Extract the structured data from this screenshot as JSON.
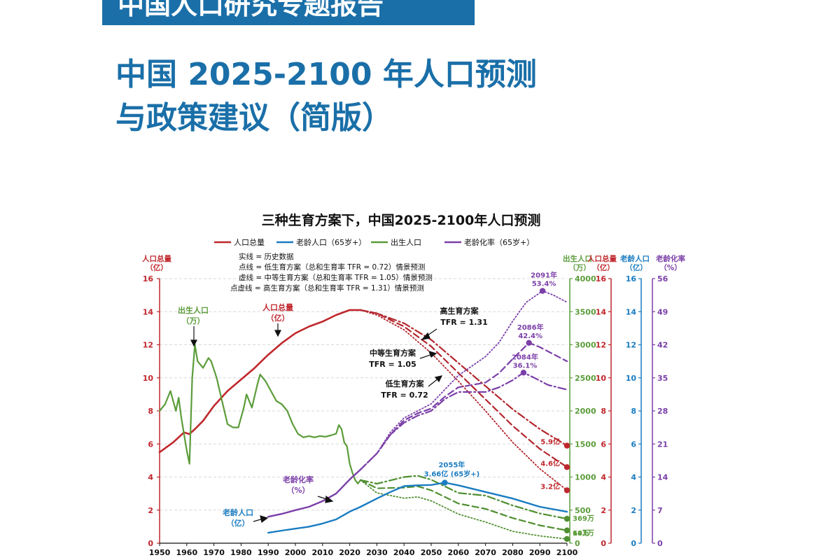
{
  "header": {
    "banner": "中国人口研究专题报告",
    "title_line1": "中国 2025-2100 年人口预测",
    "title_line2": "与政策建议（简版）"
  },
  "chart_data": {
    "type": "line",
    "title": "三种生育方案下，中国2025-2100年人口预测",
    "legend": [
      {
        "label": "人口总量",
        "color": "#c0272d"
      },
      {
        "label": "老龄人口（65岁+）",
        "color": "#1a7cc1"
      },
      {
        "label": "出生人口",
        "color": "#5b9c3a"
      },
      {
        "label": "老龄化率（65岁+）",
        "color": "#7b3fa8"
      }
    ],
    "line_style_notes": [
      "实线 = 历史数据",
      "点线 = 低生育方案（总和生育率 TFR = 0.72）情景预测",
      "虚线 = 中等生育方案（总和生育率 TFR = 1.05）情景预测",
      "点虚线 = 高生育方案（总和生育率 TFR = 1.31）情景预测"
    ],
    "axes": {
      "x": {
        "min": 1950,
        "max": 2100,
        "ticks": [
          "1950",
          "1960",
          "1970",
          "1980",
          "1990",
          "2000",
          "2010",
          "2020",
          "2030",
          "2040",
          "2050",
          "2060",
          "2070",
          "2080",
          "2090",
          "2100"
        ]
      },
      "left": {
        "title_line1": "人口总量",
        "title_line2": "（亿）",
        "min": 0,
        "max": 16,
        "ticks": [
          "0",
          "2",
          "4",
          "6",
          "8",
          "10",
          "12",
          "14",
          "16"
        ],
        "color": "#c0272d"
      },
      "right_births": {
        "title_line1": "出生人口",
        "title_line2": "（万）",
        "min": 0,
        "max": 4000,
        "ticks": [
          "0",
          "500",
          "1000",
          "1500",
          "2000",
          "2500",
          "3000",
          "3500",
          "4000"
        ],
        "color": "#5b9c3a"
      },
      "right_population": {
        "title_line1": "人口总量",
        "title_line2": "（亿）",
        "min": 0,
        "max": 16,
        "ticks": [
          "0",
          "2",
          "4",
          "6",
          "8",
          "10",
          "12",
          "14",
          "16"
        ],
        "color": "#c0272d"
      },
      "right_elderly": {
        "title_line1": "老龄人口",
        "title_line2": "（亿）",
        "min": 0,
        "max": 16,
        "ticks": [
          "0",
          "2",
          "4",
          "6",
          "8",
          "10",
          "12",
          "14",
          "16"
        ],
        "color": "#1a7cc1"
      },
      "right_aging": {
        "title_line1": "老龄化率",
        "title_line2": "（%）",
        "min": 0,
        "max": 56,
        "ticks": [
          "0",
          "7",
          "14",
          "21",
          "28",
          "35",
          "42",
          "49",
          "56"
        ],
        "color": "#7b3fa8"
      }
    },
    "series": {
      "population_history": {
        "axis": "left",
        "x": [
          1950,
          1955,
          1959,
          1961,
          1963,
          1966,
          1970,
          1975,
          1980,
          1985,
          1990,
          1995,
          2000,
          2005,
          2010,
          2015,
          2020,
          2024
        ],
        "y": [
          5.5,
          6.1,
          6.7,
          6.6,
          6.9,
          7.4,
          8.3,
          9.2,
          9.9,
          10.6,
          11.4,
          12.1,
          12.7,
          13.1,
          13.4,
          13.8,
          14.1,
          14.1
        ]
      },
      "population_low": {
        "axis": "left",
        "x": [
          2024,
          2030,
          2040,
          2050,
          2060,
          2070,
          2080,
          2090,
          2100
        ],
        "y": [
          14.1,
          13.8,
          12.9,
          11.5,
          9.8,
          8.0,
          6.1,
          4.5,
          3.2
        ]
      },
      "population_medium": {
        "axis": "left",
        "x": [
          2024,
          2030,
          2040,
          2050,
          2060,
          2070,
          2080,
          2090,
          2100
        ],
        "y": [
          14.1,
          13.9,
          13.1,
          11.9,
          10.3,
          8.7,
          7.1,
          5.7,
          4.6
        ]
      },
      "population_high": {
        "axis": "left",
        "x": [
          2024,
          2030,
          2040,
          2050,
          2060,
          2070,
          2080,
          2090,
          2100
        ],
        "y": [
          14.1,
          13.9,
          13.3,
          12.3,
          10.9,
          9.5,
          8.1,
          6.9,
          5.9
        ]
      },
      "births_history": {
        "axis": "births",
        "x": [
          1950,
          1952,
          1954,
          1956,
          1957,
          1958,
          1959,
          1960,
          1961,
          1962,
          1963,
          1964,
          1966,
          1968,
          1969,
          1971,
          1973,
          1975,
          1977,
          1979,
          1981,
          1982,
          1984,
          1986,
          1987,
          1989,
          1991,
          1993,
          1995,
          1997,
          1999,
          2001,
          2003,
          2005,
          2007,
          2009,
          2011,
          2013,
          2015,
          2016,
          2017,
          2018,
          2019,
          2020,
          2021,
          2022,
          2023,
          2024
        ],
        "y": [
          2000,
          2100,
          2300,
          2000,
          2200,
          1900,
          1650,
          1400,
          1200,
          2500,
          3000,
          2750,
          2650,
          2800,
          2750,
          2500,
          2150,
          1800,
          1750,
          1750,
          2050,
          2250,
          2050,
          2400,
          2550,
          2450,
          2300,
          2150,
          2100,
          2000,
          1800,
          1650,
          1600,
          1620,
          1600,
          1620,
          1610,
          1630,
          1655,
          1786,
          1723,
          1523,
          1465,
          1202,
          1062,
          956,
          902,
          954
        ]
      },
      "births_low": {
        "axis": "births",
        "x": [
          2024,
          2030,
          2040,
          2045,
          2050,
          2060,
          2070,
          2080,
          2090,
          2100
        ],
        "y": [
          954,
          760,
          680,
          700,
          640,
          440,
          320,
          180,
          110,
          64
        ]
      },
      "births_medium": {
        "axis": "births",
        "x": [
          2024,
          2030,
          2040,
          2045,
          2050,
          2060,
          2070,
          2080,
          2090,
          2100
        ],
        "y": [
          954,
          830,
          840,
          860,
          800,
          600,
          520,
          380,
          270,
          193
        ]
      },
      "births_high": {
        "axis": "births",
        "x": [
          2024,
          2030,
          2040,
          2045,
          2050,
          2060,
          2070,
          2080,
          2090,
          2100
        ],
        "y": [
          954,
          900,
          1000,
          1020,
          960,
          760,
          720,
          570,
          450,
          369
        ]
      },
      "elderly_history": {
        "axis": "left",
        "x": [
          1990,
          1995,
          2000,
          2005,
          2010,
          2015,
          2020,
          2024
        ],
        "y": [
          0.63,
          0.76,
          0.88,
          1.0,
          1.19,
          1.44,
          1.91,
          2.2
        ]
      },
      "elderly_projection": {
        "axis": "left",
        "x": [
          2024,
          2030,
          2035,
          2040,
          2045,
          2050,
          2055,
          2060,
          2070,
          2080,
          2090,
          2100
        ],
        "y": [
          2.2,
          2.7,
          3.1,
          3.45,
          3.5,
          3.52,
          3.66,
          3.5,
          3.1,
          2.7,
          2.2,
          1.9
        ]
      },
      "aging_history": {
        "axis": "aging",
        "x": [
          1990,
          1995,
          2000,
          2005,
          2010,
          2015,
          2020,
          2024
        ],
        "y": [
          5.6,
          6.2,
          7.0,
          7.7,
          8.9,
          10.5,
          13.5,
          15.6
        ]
      },
      "aging_low": {
        "axis": "aging",
        "x": [
          2024,
          2030,
          2035,
          2040,
          2045,
          2050,
          2055,
          2060,
          2065,
          2070,
          2075,
          2080,
          2085,
          2091,
          2095,
          2100
        ],
        "y": [
          15.6,
          19.0,
          23.5,
          26.5,
          28.0,
          29.5,
          32.5,
          35.5,
          37.5,
          39.5,
          42.5,
          47.0,
          51.0,
          53.4,
          52.5,
          51.0
        ]
      },
      "aging_medium": {
        "axis": "aging",
        "x": [
          2024,
          2030,
          2035,
          2040,
          2045,
          2050,
          2055,
          2060,
          2065,
          2070,
          2075,
          2080,
          2086,
          2090,
          2095,
          2100
        ],
        "y": [
          15.6,
          19.0,
          23.0,
          26.0,
          27.5,
          28.5,
          31.0,
          33.0,
          33.5,
          34.0,
          36.0,
          39.0,
          42.4,
          41.5,
          40.0,
          38.5
        ]
      },
      "aging_high": {
        "axis": "aging",
        "x": [
          2024,
          2030,
          2035,
          2040,
          2045,
          2050,
          2055,
          2060,
          2065,
          2070,
          2075,
          2080,
          2084,
          2088,
          2093,
          2100
        ],
        "y": [
          15.6,
          19.0,
          23.0,
          25.5,
          27.0,
          28.0,
          30.5,
          32.0,
          32.0,
          32.0,
          33.0,
          34.5,
          36.1,
          35.0,
          33.5,
          32.5
        ]
      }
    },
    "labels": {
      "births_axis_label": {
        "line1": "出生人口",
        "line2": "（万）"
      },
      "population_label": {
        "line1": "人口总量",
        "line2": "（亿）"
      },
      "aging_label": {
        "line1": "老龄化率",
        "line2": "（%）"
      },
      "elderly_label": {
        "line1": "老龄人口",
        "line2": "（亿）"
      },
      "high_scenario": {
        "line1": "高生育方案",
        "line2": "TFR = 1.31"
      },
      "medium_scenario": {
        "line1": "中等生育方案",
        "line2": "TFR = 1.05"
      },
      "low_scenario": {
        "line1": "低生育方案",
        "line2": "TFR = 0.72"
      },
      "peak_2091": {
        "line1": "2091年",
        "line2": "53.4%",
        "x": 2091,
        "y": 53.4
      },
      "peak_2086": {
        "line1": "2086年",
        "line2": "42.4%",
        "x": 2086,
        "y": 42.4
      },
      "peak_2084": {
        "line1": "2084年",
        "line2": "36.1%",
        "x": 2084,
        "y": 36.1
      },
      "elderly_peak": {
        "line1": "2055年",
        "line2": "3.66亿 (65岁+)",
        "x": 2055,
        "y": 3.66
      },
      "pop_high_end": {
        "text": "5.9亿",
        "x": 2100,
        "y": 5.9
      },
      "pop_medium_end": {
        "text": "4.6亿",
        "x": 2100,
        "y": 4.6
      },
      "pop_low_end": {
        "text": "3.2亿",
        "x": 2100,
        "y": 3.2
      },
      "births_high_end": {
        "text": "369万",
        "x": 2100,
        "y": 369
      },
      "births_medium_end": {
        "text": "193万",
        "x": 2100,
        "y": 193
      },
      "births_low_end": {
        "text": "64万",
        "x": 2100,
        "y": 64
      }
    },
    "grid": true
  }
}
